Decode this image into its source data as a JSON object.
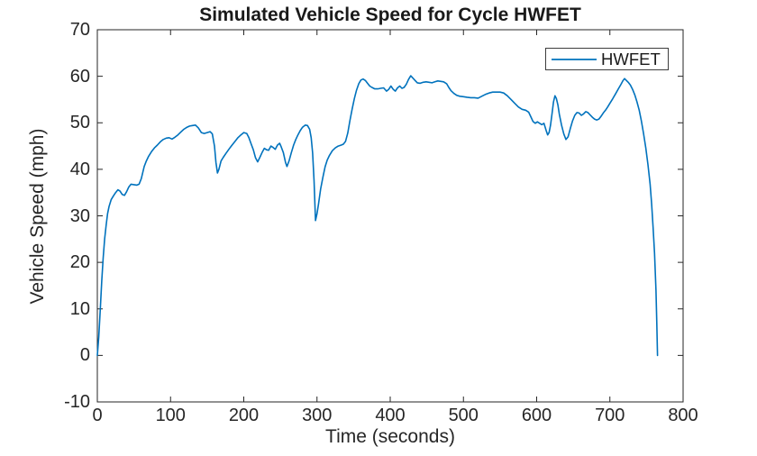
{
  "colors": {
    "line": "#0072BD",
    "axes": "#262626",
    "text": "#262626",
    "background": "#ffffff"
  },
  "legend": {
    "entries": [
      {
        "label": "HWFET",
        "color": "#0072BD"
      }
    ],
    "position": "top-right"
  },
  "chart_data": {
    "type": "line",
    "title": "Simulated Vehicle Speed for Cycle HWFET",
    "xlabel": "Time (seconds)",
    "ylabel": "Vehicle Speed (mph)",
    "xlim": [
      0,
      800
    ],
    "ylim": [
      -10,
      70
    ],
    "xticks": [
      0,
      100,
      200,
      300,
      400,
      500,
      600,
      700,
      800
    ],
    "yticks": [
      -10,
      0,
      10,
      20,
      30,
      40,
      50,
      60,
      70
    ],
    "grid": false,
    "box": true,
    "legend_entries": [
      "HWFET"
    ],
    "series": [
      {
        "name": "HWFET",
        "color": "#0072BD",
        "points": [
          [
            0,
            0
          ],
          [
            2,
            4
          ],
          [
            4,
            10
          ],
          [
            6,
            16
          ],
          [
            8,
            21
          ],
          [
            10,
            25
          ],
          [
            12,
            28
          ],
          [
            14,
            30.5
          ],
          [
            16,
            32
          ],
          [
            19,
            33.5
          ],
          [
            22,
            34.3
          ],
          [
            25,
            35
          ],
          [
            28,
            35.6
          ],
          [
            31,
            35.3
          ],
          [
            34,
            34.6
          ],
          [
            37,
            34.4
          ],
          [
            40,
            35.2
          ],
          [
            43,
            36.2
          ],
          [
            46,
            36.8
          ],
          [
            50,
            36.7
          ],
          [
            54,
            36.6
          ],
          [
            57,
            36.8
          ],
          [
            60,
            38
          ],
          [
            64,
            40.6
          ],
          [
            67,
            41.8
          ],
          [
            70,
            42.8
          ],
          [
            74,
            43.8
          ],
          [
            78,
            44.6
          ],
          [
            82,
            45.2
          ],
          [
            86,
            45.9
          ],
          [
            90,
            46.4
          ],
          [
            94,
            46.7
          ],
          [
            98,
            46.8
          ],
          [
            102,
            46.5
          ],
          [
            106,
            46.9
          ],
          [
            110,
            47.4
          ],
          [
            114,
            48
          ],
          [
            118,
            48.6
          ],
          [
            122,
            49
          ],
          [
            126,
            49.3
          ],
          [
            130,
            49.4
          ],
          [
            134,
            49.5
          ],
          [
            138,
            48.9
          ],
          [
            142,
            47.9
          ],
          [
            146,
            47.7
          ],
          [
            150,
            47.9
          ],
          [
            154,
            48.1
          ],
          [
            157,
            47.6
          ],
          [
            160,
            45
          ],
          [
            162,
            41.5
          ],
          [
            164,
            39.2
          ],
          [
            166,
            40
          ],
          [
            169,
            41.8
          ],
          [
            172,
            42.6
          ],
          [
            176,
            43.5
          ],
          [
            180,
            44.4
          ],
          [
            184,
            45.2
          ],
          [
            188,
            46
          ],
          [
            192,
            46.8
          ],
          [
            196,
            47.4
          ],
          [
            200,
            47.9
          ],
          [
            204,
            47.7
          ],
          [
            207,
            46.8
          ],
          [
            210,
            45.5
          ],
          [
            213,
            44.2
          ],
          [
            216,
            42.5
          ],
          [
            219,
            41.6
          ],
          [
            222,
            42.6
          ],
          [
            225,
            43.6
          ],
          [
            228,
            44.5
          ],
          [
            231,
            44.2
          ],
          [
            234,
            44.1
          ],
          [
            237,
            45
          ],
          [
            240,
            44.7
          ],
          [
            243,
            44.3
          ],
          [
            246,
            45.2
          ],
          [
            249,
            45.6
          ],
          [
            251,
            44.9
          ],
          [
            254,
            43.6
          ],
          [
            257,
            41.5
          ],
          [
            259,
            40.6
          ],
          [
            262,
            41.9
          ],
          [
            265,
            43.6
          ],
          [
            268,
            45.2
          ],
          [
            271,
            46.4
          ],
          [
            274,
            47.4
          ],
          [
            277,
            48.3
          ],
          [
            280,
            49
          ],
          [
            284,
            49.5
          ],
          [
            287,
            49.4
          ],
          [
            290,
            48.6
          ],
          [
            292,
            46.8
          ],
          [
            294,
            43.5
          ],
          [
            296,
            37.5
          ],
          [
            298,
            29
          ],
          [
            300,
            30.5
          ],
          [
            302,
            32.5
          ],
          [
            305,
            35.8
          ],
          [
            308,
            38.3
          ],
          [
            311,
            40.5
          ],
          [
            314,
            42
          ],
          [
            317,
            43
          ],
          [
            321,
            44
          ],
          [
            325,
            44.6
          ],
          [
            329,
            45
          ],
          [
            333,
            45.2
          ],
          [
            336,
            45.4
          ],
          [
            339,
            46
          ],
          [
            342,
            47.8
          ],
          [
            345,
            50.5
          ],
          [
            348,
            53
          ],
          [
            351,
            55.2
          ],
          [
            354,
            57
          ],
          [
            357,
            58.4
          ],
          [
            360,
            59.2
          ],
          [
            363,
            59.4
          ],
          [
            366,
            59.1
          ],
          [
            369,
            58.5
          ],
          [
            372,
            57.9
          ],
          [
            375,
            57.6
          ],
          [
            379,
            57.3
          ],
          [
            383,
            57.3
          ],
          [
            387,
            57.4
          ],
          [
            391,
            57.5
          ],
          [
            395,
            56.8
          ],
          [
            398,
            57.2
          ],
          [
            401,
            57.9
          ],
          [
            404,
            57.2
          ],
          [
            407,
            56.8
          ],
          [
            410,
            57.5
          ],
          [
            413,
            57.9
          ],
          [
            416,
            57.4
          ],
          [
            419,
            57.6
          ],
          [
            422,
            58.3
          ],
          [
            425,
            59.3
          ],
          [
            428,
            60.1
          ],
          [
            431,
            59.6
          ],
          [
            434,
            59.1
          ],
          [
            437,
            58.6
          ],
          [
            441,
            58.5
          ],
          [
            445,
            58.7
          ],
          [
            449,
            58.8
          ],
          [
            453,
            58.7
          ],
          [
            457,
            58.6
          ],
          [
            461,
            58.8
          ],
          [
            465,
            59
          ],
          [
            469,
            58.9
          ],
          [
            473,
            58.8
          ],
          [
            477,
            58.4
          ],
          [
            480,
            57.6
          ],
          [
            483,
            56.9
          ],
          [
            487,
            56.3
          ],
          [
            491,
            55.9
          ],
          [
            495,
            55.7
          ],
          [
            500,
            55.6
          ],
          [
            505,
            55.5
          ],
          [
            510,
            55.4
          ],
          [
            515,
            55.4
          ],
          [
            520,
            55.3
          ],
          [
            525,
            55.7
          ],
          [
            530,
            56.1
          ],
          [
            535,
            56.4
          ],
          [
            540,
            56.6
          ],
          [
            545,
            56.6
          ],
          [
            550,
            56.6
          ],
          [
            555,
            56.4
          ],
          [
            560,
            55.8
          ],
          [
            565,
            55
          ],
          [
            570,
            54.2
          ],
          [
            575,
            53.4
          ],
          [
            580,
            52.9
          ],
          [
            585,
            52.7
          ],
          [
            589,
            52.3
          ],
          [
            592,
            51.3
          ],
          [
            595,
            50.3
          ],
          [
            598,
            49.9
          ],
          [
            601,
            50.2
          ],
          [
            604,
            49.9
          ],
          [
            607,
            49.6
          ],
          [
            610,
            49.9
          ],
          [
            613,
            48.3
          ],
          [
            615,
            47.4
          ],
          [
            617,
            47.9
          ],
          [
            619,
            49.5
          ],
          [
            621,
            52
          ],
          [
            623,
            54.5
          ],
          [
            625,
            55.8
          ],
          [
            627,
            55.2
          ],
          [
            629,
            53.8
          ],
          [
            631,
            51.8
          ],
          [
            634,
            49.5
          ],
          [
            637,
            47.6
          ],
          [
            640,
            46.4
          ],
          [
            643,
            47
          ],
          [
            646,
            48.8
          ],
          [
            649,
            50.4
          ],
          [
            652,
            51.6
          ],
          [
            655,
            52.2
          ],
          [
            658,
            52.1
          ],
          [
            661,
            51.6
          ],
          [
            664,
            51.9
          ],
          [
            667,
            52.4
          ],
          [
            670,
            52.2
          ],
          [
            673,
            51.7
          ],
          [
            676,
            51.2
          ],
          [
            679,
            50.8
          ],
          [
            682,
            50.6
          ],
          [
            685,
            50.8
          ],
          [
            688,
            51.4
          ],
          [
            691,
            52.1
          ],
          [
            694,
            52.7
          ],
          [
            697,
            53.4
          ],
          [
            700,
            54.2
          ],
          [
            704,
            55.2
          ],
          [
            708,
            56.3
          ],
          [
            712,
            57.4
          ],
          [
            715,
            58.2
          ],
          [
            718,
            59.1
          ],
          [
            720,
            59.5
          ],
          [
            722,
            59.2
          ],
          [
            725,
            58.7
          ],
          [
            728,
            58.1
          ],
          [
            731,
            57.2
          ],
          [
            734,
            56
          ],
          [
            737,
            54.5
          ],
          [
            740,
            52.7
          ],
          [
            743,
            50.4
          ],
          [
            746,
            47.7
          ],
          [
            749,
            44.6
          ],
          [
            752,
            41
          ],
          [
            755,
            36.8
          ],
          [
            757,
            32.5
          ],
          [
            759,
            27.5
          ],
          [
            761,
            22
          ],
          [
            763,
            14
          ],
          [
            764,
            7
          ],
          [
            765,
            0
          ]
        ]
      }
    ]
  }
}
